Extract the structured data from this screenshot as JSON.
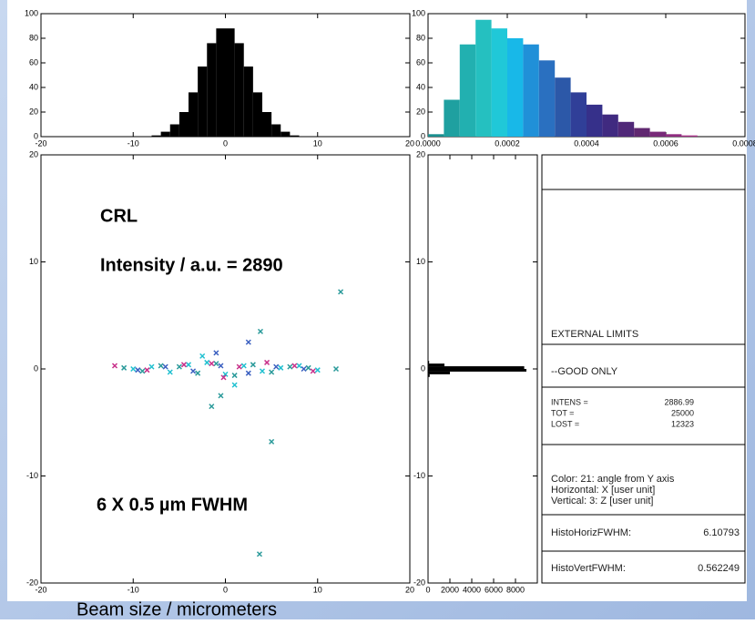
{
  "chart_data": [
    {
      "type": "histogram",
      "bins": [
        -20,
        -19,
        -18,
        -17,
        -16,
        -15,
        -14,
        -13,
        -12,
        -11,
        -10,
        -9,
        -8,
        -7,
        -6,
        -5,
        -4,
        -3,
        -2,
        -1,
        0,
        1,
        2,
        3,
        4,
        5,
        6,
        7,
        8,
        9,
        10,
        11,
        12,
        13,
        14,
        15,
        16,
        17,
        18,
        19,
        20
      ],
      "values": [
        0,
        0,
        0,
        0,
        0,
        0,
        0,
        0,
        0,
        0,
        0,
        0,
        1,
        4,
        10,
        20,
        36,
        57,
        76,
        88,
        88,
        76,
        57,
        36,
        20,
        10,
        4,
        1,
        0,
        0,
        0,
        0,
        0,
        0,
        0,
        0,
        0,
        0,
        0,
        0
      ],
      "color": "#000000",
      "xlim": [
        -20,
        20
      ],
      "xticks": [
        -20,
        -10,
        0,
        10,
        20
      ],
      "ylim": [
        0,
        100
      ],
      "yticks": [
        0,
        20,
        40,
        60,
        80,
        100
      ]
    },
    {
      "type": "histogram",
      "bins": [
        0,
        4e-05,
        8e-05,
        0.00012,
        0.00016,
        0.0002,
        0.00024,
        0.00028,
        0.00032,
        0.00036,
        0.0004,
        0.00044,
        0.00048,
        0.00052,
        0.00056,
        0.0006,
        0.00064,
        0.00068,
        0.00072,
        0.00076,
        0.0008
      ],
      "values": [
        2,
        30,
        75,
        95,
        88,
        80,
        75,
        62,
        48,
        36,
        26,
        18,
        12,
        7,
        4,
        2,
        1,
        0,
        0,
        0
      ],
      "colors": [
        "#1a8f8f",
        "#1fa0a0",
        "#22b0b0",
        "#25c0c0",
        "#20c8d8",
        "#18b8e8",
        "#2090d8",
        "#2a70c0",
        "#2c58a8",
        "#303f98",
        "#36308a",
        "#402a80",
        "#502878",
        "#602870",
        "#782a78",
        "#902c80",
        "#a83088",
        "#c03090",
        "#c03090",
        "#c03090"
      ],
      "xlim": [
        0,
        0.0008
      ],
      "xticks": [
        {
          "value": 0,
          "label": "0.0000"
        },
        {
          "value": 0.0002,
          "label": "0.0002"
        },
        {
          "value": 0.0004,
          "label": "0.0004"
        },
        {
          "value": 0.0006,
          "label": "0.0006"
        },
        {
          "value": 0.0008,
          "label": "0.0008"
        }
      ],
      "ylim": [
        0,
        100
      ],
      "yticks": [
        0,
        20,
        40,
        60,
        80,
        100
      ]
    },
    {
      "type": "scatter",
      "xlim": [
        -20,
        20
      ],
      "ylim": [
        -20,
        20
      ],
      "xticks": [
        -20,
        -10,
        0,
        10,
        20
      ],
      "yticks": [
        -20,
        -10,
        0,
        10,
        20
      ],
      "series": [
        {
          "color": "#2a9a9a",
          "x": [
            -11,
            -9,
            -7,
            -5,
            -3,
            -1,
            1,
            3,
            5,
            7,
            9,
            12.5,
            3.8,
            -1.5,
            -0.5,
            5,
            3.7,
            12
          ],
          "values": [
            0.1,
            -0.2,
            0.3,
            0.2,
            -0.4,
            0.5,
            -0.6,
            0.4,
            -0.3,
            0.2,
            0.1,
            7.2,
            3.5,
            -3.5,
            -2.5,
            -6.8,
            -17.3,
            0
          ]
        },
        {
          "color": "#20c0d0",
          "x": [
            -10,
            -8,
            -6,
            -4,
            -2,
            0,
            2,
            4,
            6,
            8,
            10,
            -2.5,
            1
          ],
          "values": [
            0,
            0.2,
            -0.3,
            0.4,
            0.6,
            -0.5,
            0.3,
            -0.2,
            0.1,
            0.3,
            -0.1,
            1.2,
            -1.5
          ]
        },
        {
          "color": "#3a5fc0",
          "x": [
            -9.5,
            -6.5,
            -3.5,
            -0.5,
            2.5,
            5.5,
            8.5,
            -1,
            2.5
          ],
          "values": [
            -0.1,
            0.2,
            -0.2,
            0.3,
            -0.4,
            0.2,
            0,
            1.5,
            2.5
          ]
        },
        {
          "color": "#c8308a",
          "x": [
            -12,
            -8.5,
            -4.5,
            -1.5,
            1.5,
            4.5,
            7.5,
            9.5,
            -0.2
          ],
          "values": [
            0.3,
            -0.1,
            0.4,
            0.5,
            0.2,
            0.6,
            0.3,
            -0.2,
            -0.8
          ]
        }
      ]
    },
    {
      "type": "histogram",
      "orientation": "horizontal",
      "bins": [
        -1.5,
        -1.25,
        -1,
        -0.75,
        -0.5,
        -0.25,
        0,
        0.25,
        0.5,
        0.75,
        1,
        1.25,
        1.5
      ],
      "values": [
        0,
        5,
        20,
        150,
        2000,
        9000,
        8800,
        1500,
        100,
        10,
        2,
        0
      ],
      "color": "#000000",
      "ylim": [
        -20,
        20
      ],
      "yticks": [
        -20,
        -10,
        0,
        10,
        20
      ],
      "xlim": [
        0,
        10000
      ],
      "xticks": [
        0,
        2000,
        4000,
        6000,
        8000
      ]
    }
  ],
  "annotations": {
    "title": "CRL",
    "intensity": "Intensity / a.u. = 2890",
    "fwhm": "6 X 0.5 µm FWHM",
    "x_label": "Beam size / micrometers"
  },
  "info_panel": {
    "limits": "EXTERNAL LIMITS",
    "filter": "--GOOD ONLY",
    "intens_label": "INTENS =",
    "intens": "2886.99",
    "tot_label": "TOT =",
    "tot": "25000",
    "lost_label": "LOST =",
    "lost": "12323",
    "color": "Color:   21: angle from Y axis",
    "horizontal": "Horizontal: X [user unit]",
    "vertical": "Vertical: 3: Z [user unit]",
    "hfwhm_label": "HistoHorizFWHM:",
    "hfwhm": "6.10793",
    "vfwhm_label": "HistoVertFWHM:",
    "vfwhm": "0.562249"
  }
}
